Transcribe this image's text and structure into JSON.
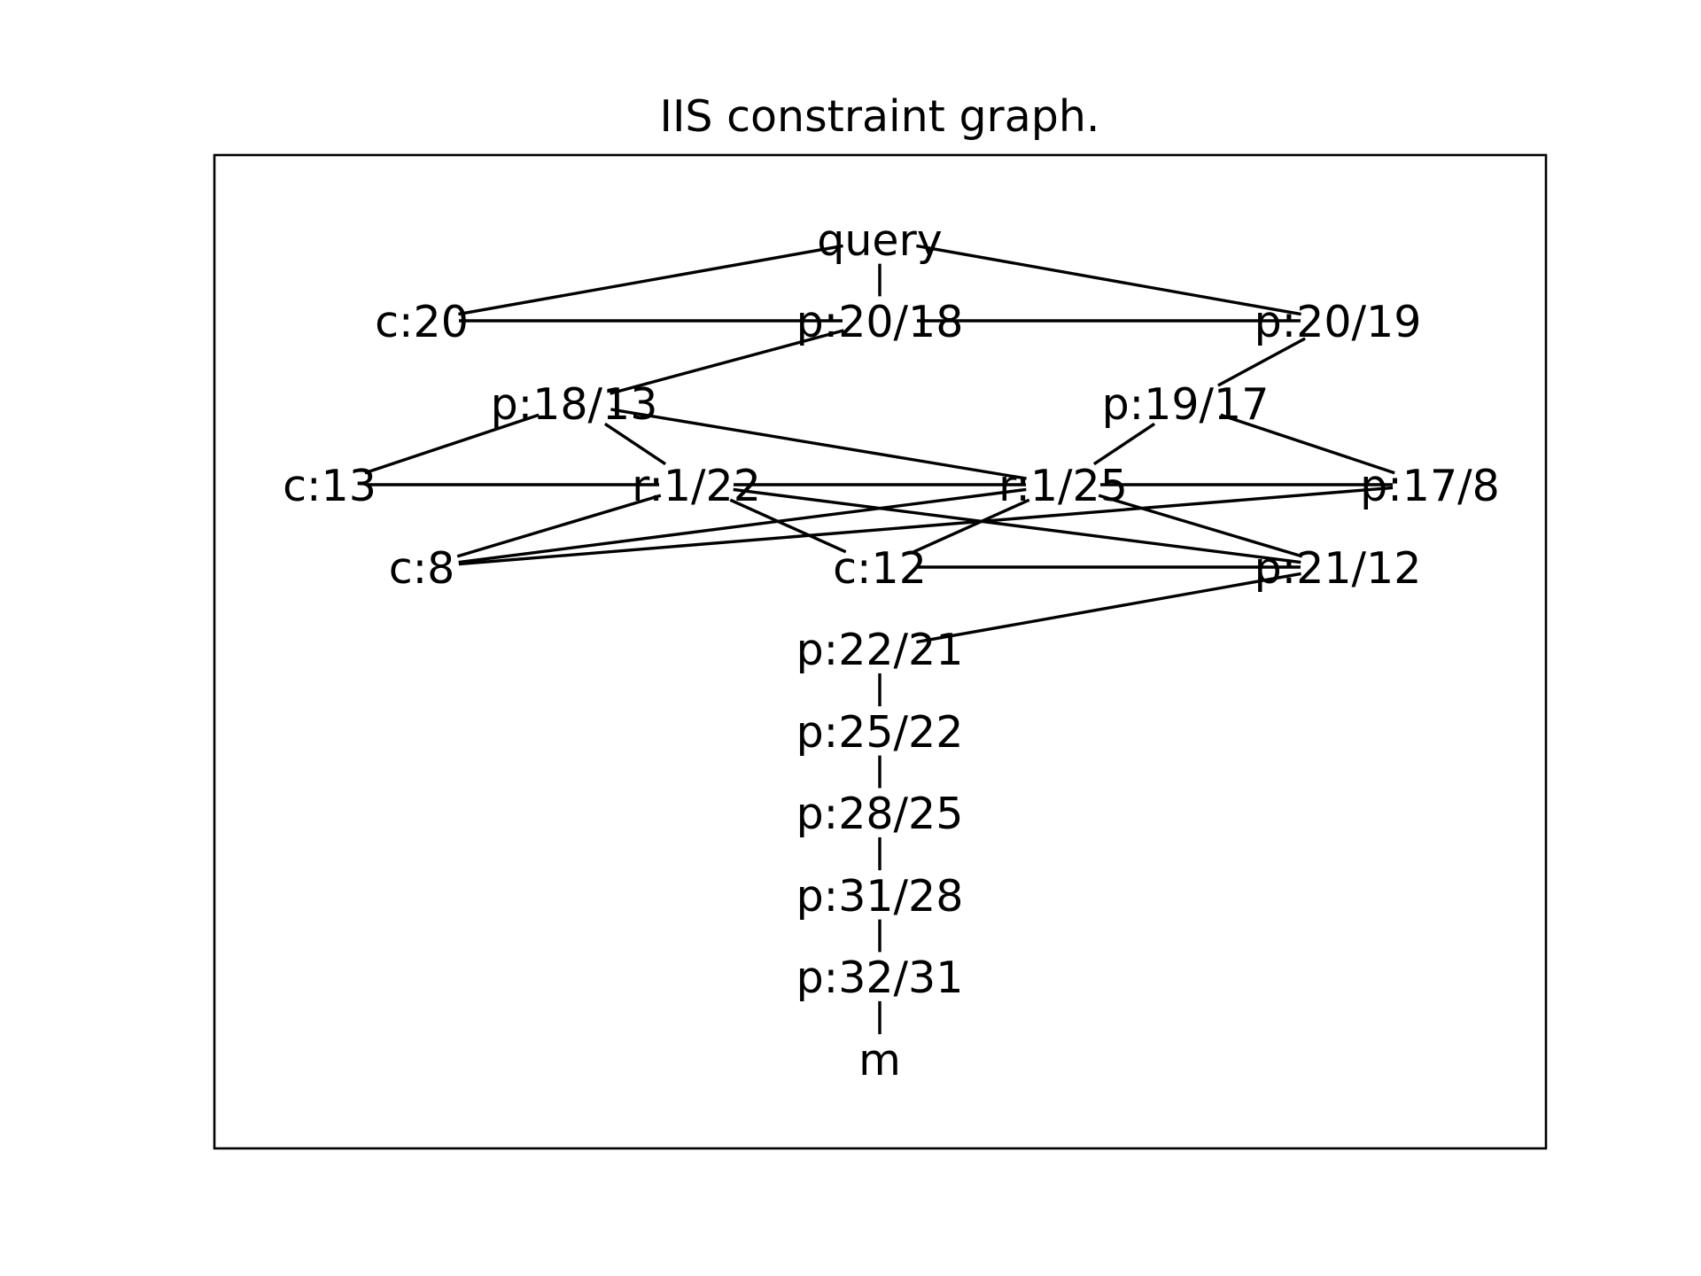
{
  "title": "IIS constraint graph.",
  "nodes": [
    {
      "id": "query",
      "label": "query"
    },
    {
      "id": "c20",
      "label": "c:20"
    },
    {
      "id": "p20_18",
      "label": "p:20/18"
    },
    {
      "id": "p20_19",
      "label": "p:20/19"
    },
    {
      "id": "p18_13",
      "label": "p:18/13"
    },
    {
      "id": "p19_17",
      "label": "p:19/17"
    },
    {
      "id": "c13",
      "label": "c:13"
    },
    {
      "id": "r1_22",
      "label": "r:1/22"
    },
    {
      "id": "r1_25",
      "label": "r:1/25"
    },
    {
      "id": "p17_8",
      "label": "p:17/8"
    },
    {
      "id": "c8",
      "label": "c:8"
    },
    {
      "id": "c12",
      "label": "c:12"
    },
    {
      "id": "p21_12",
      "label": "p:21/12"
    },
    {
      "id": "p22_21",
      "label": "p:22/21"
    },
    {
      "id": "p25_22",
      "label": "p:25/22"
    },
    {
      "id": "p28_25",
      "label": "p:28/25"
    },
    {
      "id": "p31_28",
      "label": "p:31/28"
    },
    {
      "id": "p32_31",
      "label": "p:32/31"
    },
    {
      "id": "m",
      "label": "m"
    }
  ],
  "edges": [
    [
      "query",
      "c20"
    ],
    [
      "query",
      "p20_18"
    ],
    [
      "query",
      "p20_19"
    ],
    [
      "c20",
      "p20_18"
    ],
    [
      "p20_18",
      "p20_19"
    ],
    [
      "p20_18",
      "p18_13"
    ],
    [
      "p20_19",
      "p19_17"
    ],
    [
      "p18_13",
      "c13"
    ],
    [
      "p18_13",
      "r1_22"
    ],
    [
      "p18_13",
      "r1_25"
    ],
    [
      "p19_17",
      "r1_25"
    ],
    [
      "p19_17",
      "p17_8"
    ],
    [
      "c13",
      "r1_22"
    ],
    [
      "r1_22",
      "r1_25"
    ],
    [
      "r1_25",
      "p17_8"
    ],
    [
      "r1_22",
      "c8"
    ],
    [
      "r1_22",
      "c12"
    ],
    [
      "r1_22",
      "p21_12"
    ],
    [
      "r1_25",
      "c8"
    ],
    [
      "r1_25",
      "c12"
    ],
    [
      "r1_25",
      "p21_12"
    ],
    [
      "c8",
      "p17_8"
    ],
    [
      "c12",
      "p21_12"
    ],
    [
      "p21_12",
      "p22_21"
    ],
    [
      "p22_21",
      "p25_22"
    ],
    [
      "p25_22",
      "p28_25"
    ],
    [
      "p28_25",
      "p31_28"
    ],
    [
      "p31_28",
      "p32_31"
    ],
    [
      "p32_31",
      "m"
    ]
  ]
}
